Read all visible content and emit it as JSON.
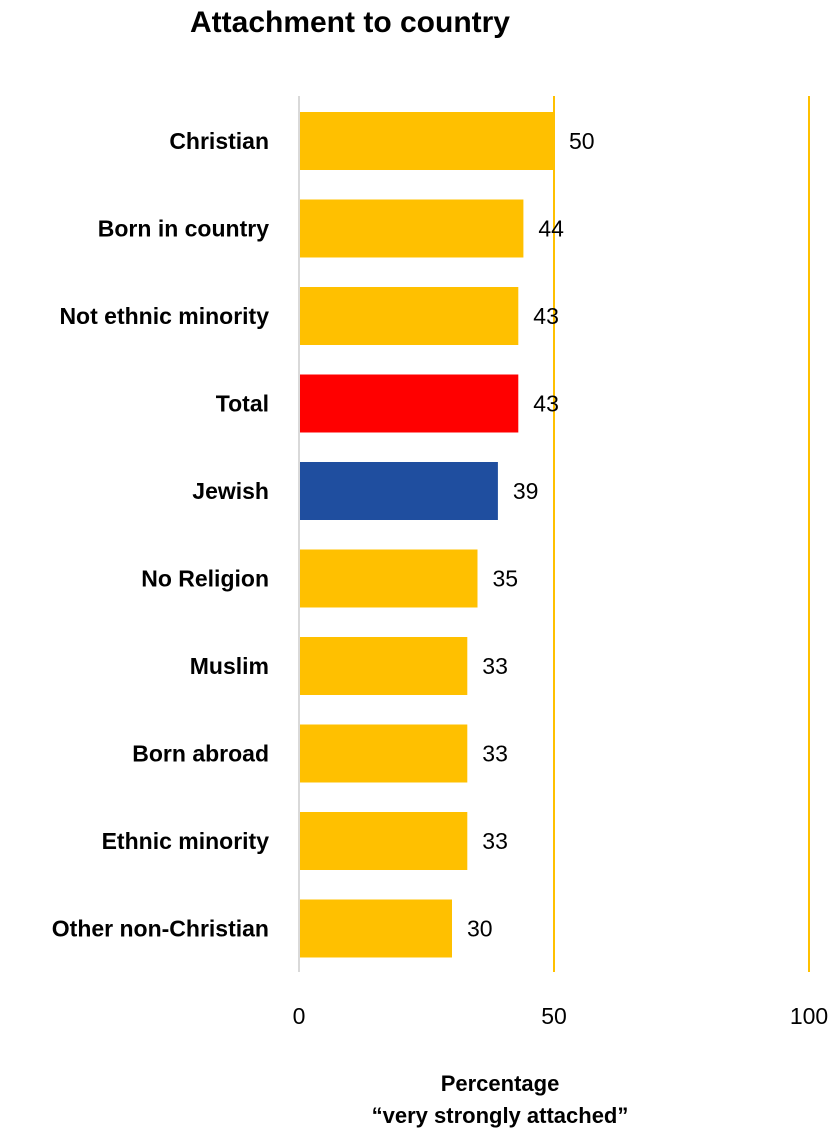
{
  "chart_data": {
    "type": "bar",
    "orientation": "horizontal",
    "title": "Attachment to country",
    "xlabel_lines": [
      "Percentage",
      "“very strongly attached”"
    ],
    "ylabel": "",
    "categories": [
      "Christian",
      "Born in country",
      "Not ethnic minority",
      "Total",
      "Jewish",
      "No Religion",
      "Muslim",
      "Born abroad",
      "Ethnic minority",
      "Other non-Christian"
    ],
    "values": [
      50,
      44,
      43,
      43,
      39,
      35,
      33,
      33,
      33,
      30
    ],
    "value_labels": [
      "50",
      "44",
      "43",
      "43",
      "39",
      "35",
      "33",
      "33",
      "33",
      "30"
    ],
    "bar_colors": [
      "#FFC000",
      "#FFC000",
      "#FFC000",
      "#FF0000",
      "#1F4E9F",
      "#FFC000",
      "#FFC000",
      "#FFC000",
      "#FFC000",
      "#FFC000"
    ],
    "xlim": [
      0,
      100
    ],
    "xticks": [
      0,
      50,
      100
    ],
    "xtick_labels": [
      "0",
      "50",
      "100"
    ],
    "gridlines_x": [
      50,
      100
    ],
    "gridline_color": "#FFC000",
    "axis_color": "#D9D9D9",
    "grid": true,
    "legend": "none"
  }
}
